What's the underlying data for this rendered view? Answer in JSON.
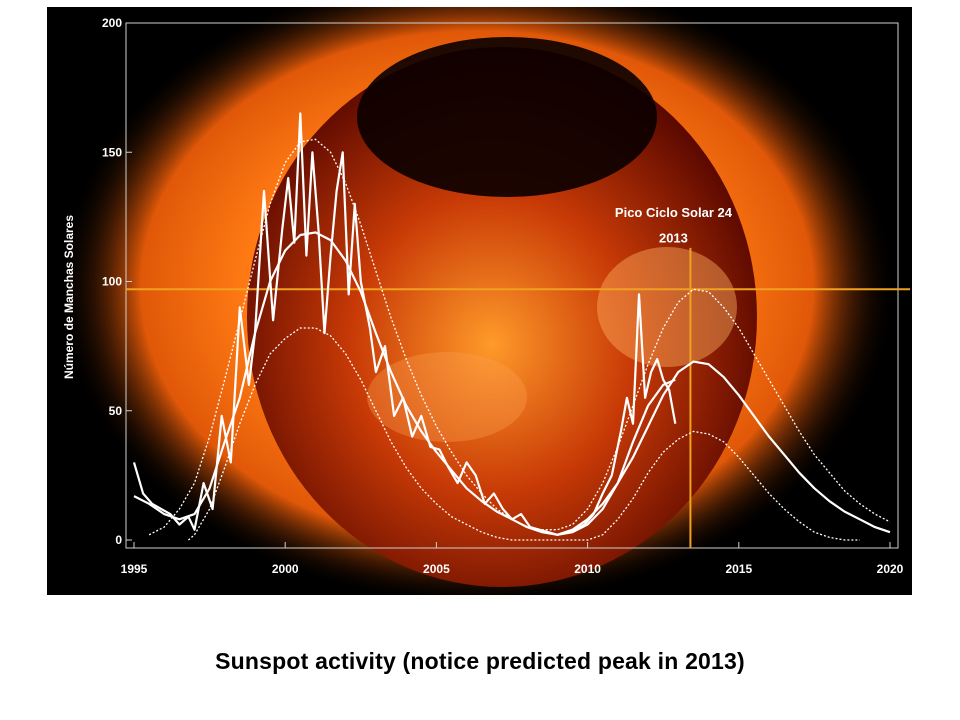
{
  "caption": "Sunspot activity (notice predicted peak in 2013)",
  "colors": {
    "background_outer": "#000000",
    "sun_corona": "#ff7a14",
    "sun_core": "#4a0600",
    "data_line": "#ffffff",
    "reference_line": "#f0a020"
  },
  "chart_data": {
    "type": "line",
    "title": "",
    "ylabel": "Número de Manchas Solares",
    "xlabel": "",
    "xlim": [
      1995,
      2020
    ],
    "ylim": [
      0,
      200
    ],
    "x_ticks": [
      "1995",
      "2000",
      "2005",
      "2010",
      "2015",
      "2020"
    ],
    "y_ticks": [
      "0",
      "50",
      "100",
      "150",
      "200"
    ],
    "grid": false,
    "annotations": [
      {
        "text": "Pico Ciclo Solar 24",
        "x": 2013.5,
        "y": 125
      },
      {
        "text": "2013",
        "x": 2013.5,
        "y": 115
      }
    ],
    "reference_lines": {
      "horizontal_y": 97,
      "vertical_x": 2013.4
    },
    "series": [
      {
        "style": "monthly",
        "x": [
          1995.0,
          1995.3,
          1995.6,
          1995.9,
          1996.2,
          1996.5,
          1996.8,
          1997.0,
          1997.3,
          1997.6,
          1997.9,
          1998.2,
          1998.5,
          1998.8,
          1999.0,
          1999.3,
          1999.6,
          1999.9,
          2000.1,
          2000.3,
          2000.5,
          2000.7,
          2000.9,
          2001.1,
          2001.3,
          2001.5,
          2001.7,
          2001.9,
          2002.1,
          2002.3,
          2002.5,
          2002.8,
          2003.0,
          2003.3,
          2003.6,
          2003.9,
          2004.2,
          2004.5,
          2004.8,
          2005.1,
          2005.4,
          2005.7,
          2006.0,
          2006.3,
          2006.6,
          2006.9,
          2007.2,
          2007.5,
          2007.8,
          2008.1,
          2008.4,
          2008.7,
          2009.0,
          2009.3,
          2009.6,
          2009.9,
          2010.2,
          2010.5,
          2010.8,
          2011.1,
          2011.3,
          2011.5,
          2011.7,
          2011.9,
          2012.1,
          2012.3,
          2012.5,
          2012.7,
          2012.9
        ],
        "values": [
          30,
          18,
          14,
          12,
          10,
          6,
          9,
          4,
          22,
          12,
          48,
          30,
          90,
          60,
          80,
          135,
          85,
          120,
          140,
          115,
          165,
          110,
          150,
          120,
          80,
          110,
          135,
          150,
          95,
          130,
          100,
          82,
          65,
          75,
          48,
          55,
          40,
          48,
          36,
          35,
          28,
          22,
          30,
          25,
          14,
          18,
          12,
          8,
          10,
          5,
          4,
          3,
          2,
          3,
          4,
          6,
          10,
          18,
          25,
          42,
          55,
          45,
          95,
          55,
          65,
          70,
          62,
          58,
          45
        ]
      },
      {
        "style": "smoothed",
        "x": [
          1995.0,
          1995.5,
          1996.0,
          1996.5,
          1997.0,
          1997.5,
          1998.0,
          1998.5,
          1999.0,
          1999.5,
          2000.0,
          2000.5,
          2001.0,
          2001.5,
          2002.0,
          2002.5,
          2003.0,
          2003.5,
          2004.0,
          2004.5,
          2005.0,
          2005.5,
          2006.0,
          2006.5,
          2007.0,
          2007.5,
          2008.0,
          2008.5,
          2009.0,
          2009.5,
          2010.0,
          2010.5,
          2011.0,
          2011.5,
          2012.0,
          2012.5,
          2012.9
        ],
        "values": [
          17,
          14,
          10,
          8,
          10,
          20,
          38,
          55,
          80,
          100,
          112,
          118,
          119,
          116,
          108,
          96,
          80,
          65,
          52,
          42,
          34,
          27,
          20,
          15,
          11,
          8,
          5,
          3,
          2,
          3,
          6,
          12,
          22,
          38,
          52,
          60,
          62
        ]
      },
      {
        "style": "predicted",
        "x": [
          2009.0,
          2009.5,
          2010.0,
          2010.5,
          2011.0,
          2011.5,
          2012.0,
          2012.5,
          2013.0,
          2013.5,
          2014.0,
          2014.5,
          2015.0,
          2015.5,
          2016.0,
          2016.5,
          2017.0,
          2017.5,
          2018.0,
          2018.5,
          2019.0,
          2019.5,
          2020.0
        ],
        "values": [
          2,
          4,
          8,
          14,
          22,
          32,
          44,
          56,
          65,
          69,
          68,
          63,
          56,
          48,
          40,
          33,
          26,
          20,
          15,
          11,
          8,
          5,
          3
        ]
      },
      {
        "style": "upper_bound",
        "x": [
          1995.5,
          1996.0,
          1996.5,
          1997.0,
          1997.5,
          1998.0,
          1998.5,
          1999.0,
          1999.5,
          2000.0,
          2000.5,
          2001.0,
          2001.5,
          2002.0,
          2002.5,
          2003.0,
          2003.5,
          2004.0,
          2004.5,
          2005.0,
          2005.5,
          2006.0,
          2006.5,
          2007.0,
          2007.5,
          2008.0,
          2008.5,
          2009.0,
          2009.5,
          2010.0,
          2010.5,
          2011.0,
          2011.5,
          2012.0,
          2012.5,
          2013.0,
          2013.5,
          2014.0,
          2014.5,
          2015.0,
          2015.5,
          2016.0,
          2016.5,
          2017.0,
          2017.5,
          2018.0,
          2018.5,
          2019.0,
          2019.5,
          2020.0
        ],
        "values": [
          2,
          5,
          12,
          22,
          40,
          62,
          85,
          108,
          130,
          146,
          154,
          155,
          150,
          138,
          122,
          104,
          86,
          70,
          56,
          44,
          34,
          25,
          18,
          12,
          8,
          5,
          4,
          4,
          6,
          12,
          22,
          36,
          52,
          68,
          82,
          92,
          97,
          96,
          90,
          82,
          72,
          62,
          52,
          42,
          33,
          26,
          19,
          14,
          10,
          7
        ]
      },
      {
        "style": "lower_bound",
        "x": [
          1996.8,
          1997.0,
          1997.5,
          1998.0,
          1998.5,
          1999.0,
          1999.5,
          2000.0,
          2000.5,
          2001.0,
          2001.5,
          2002.0,
          2002.5,
          2003.0,
          2003.5,
          2004.0,
          2004.5,
          2005.0,
          2005.5,
          2006.0,
          2006.5,
          2007.0,
          2007.5,
          2008.0,
          2008.5,
          2009.0,
          2009.5,
          2010.0,
          2010.5,
          2011.0,
          2011.5,
          2012.0,
          2012.5,
          2013.0,
          2013.5,
          2014.0,
          2014.5,
          2015.0,
          2015.5,
          2016.0,
          2016.5,
          2017.0,
          2017.5,
          2018.0,
          2018.5,
          2019.0
        ],
        "values": [
          0,
          2,
          12,
          28,
          45,
          60,
          72,
          78,
          82,
          82,
          79,
          72,
          62,
          50,
          38,
          28,
          20,
          14,
          9,
          6,
          3,
          1,
          0,
          0,
          0,
          0,
          0,
          0,
          2,
          8,
          16,
          26,
          34,
          39,
          42,
          41,
          38,
          32,
          25,
          18,
          12,
          7,
          3,
          1,
          0,
          0
        ]
      }
    ]
  }
}
